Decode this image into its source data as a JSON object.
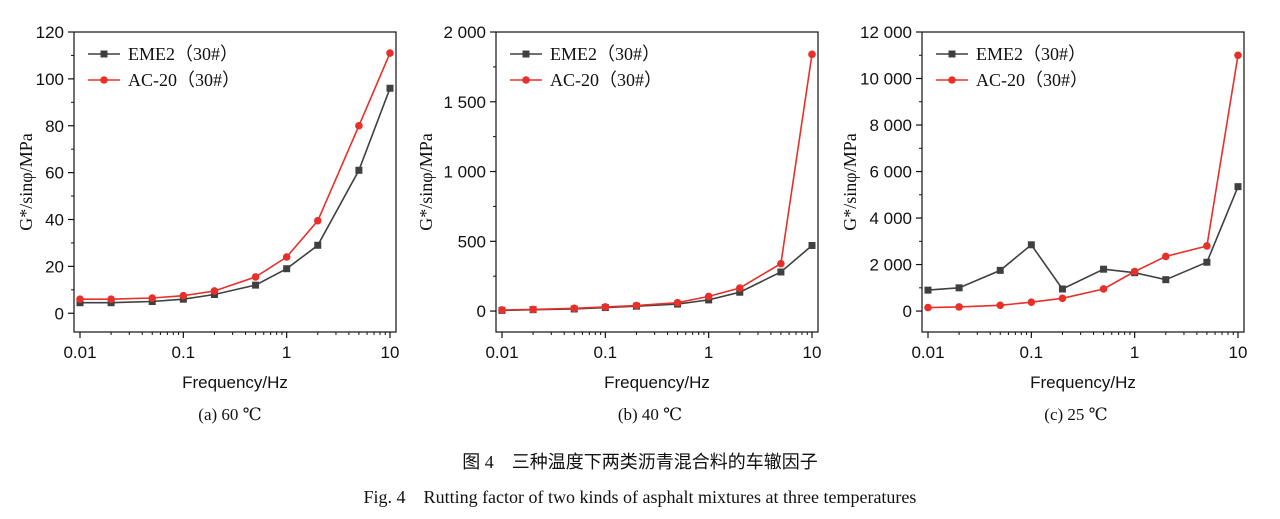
{
  "figure": {
    "caption_cn": "图 4    三种温度下两类沥青混合料的车辙因子",
    "caption_en": "Fig. 4    Rutting factor of two kinds of asphalt mixtures at three temperatures"
  },
  "colors": {
    "EME2": "#404040",
    "AC20": "#e8302a"
  },
  "chart_data": [
    {
      "type": "line",
      "subtitle": "(a) 60 ℃",
      "xlabel": "Frequency/Hz",
      "ylabel": "G*/sinφ/MPa",
      "xscale": "log",
      "xlim": [
        0.01,
        10
      ],
      "xticks": [
        0.01,
        0.1,
        1,
        10
      ],
      "xtick_labels": [
        "0.01",
        "0.1",
        "1",
        "10"
      ],
      "ylim": [
        -8,
        120
      ],
      "yticks": [
        0,
        20,
        40,
        60,
        80,
        100,
        120
      ],
      "ytick_labels": [
        "0",
        "20",
        "40",
        "60",
        "80",
        "100",
        "120"
      ],
      "legend_position": "top-left",
      "x": [
        0.01,
        0.02,
        0.05,
        0.1,
        0.2,
        0.5,
        1,
        2,
        5,
        10
      ],
      "series": [
        {
          "name": "EME2（30#）",
          "marker": "square",
          "values": [
            4.5,
            4.5,
            5,
            6,
            8,
            12,
            19,
            29,
            61,
            96
          ]
        },
        {
          "name": "AC-20（30#）",
          "marker": "circle",
          "values": [
            6,
            6,
            6.5,
            7.5,
            9.5,
            15.5,
            24,
            39.5,
            80,
            111
          ]
        }
      ]
    },
    {
      "type": "line",
      "subtitle": "(b) 40 ℃",
      "xlabel": "Frequency/Hz",
      "ylabel": "G*/sinφ/MPa",
      "xscale": "log",
      "xlim": [
        0.01,
        10
      ],
      "xticks": [
        0.01,
        0.1,
        1,
        10
      ],
      "xtick_labels": [
        "0.01",
        "0.1",
        "1",
        "10"
      ],
      "ylim": [
        -150,
        2000
      ],
      "yticks": [
        0,
        500,
        1000,
        1500,
        2000
      ],
      "ytick_labels": [
        "0",
        "500",
        "1 000",
        "1 500",
        "2 000"
      ],
      "legend_position": "top-left",
      "x": [
        0.01,
        0.02,
        0.05,
        0.1,
        0.2,
        0.5,
        1,
        2,
        5,
        10
      ],
      "series": [
        {
          "name": "EME2（30#）",
          "marker": "square",
          "values": [
            5,
            10,
            15,
            25,
            35,
            50,
            80,
            135,
            280,
            470
          ]
        },
        {
          "name": "AC-20（30#）",
          "marker": "circle",
          "values": [
            8,
            12,
            20,
            30,
            40,
            60,
            105,
            165,
            340,
            1840
          ]
        }
      ]
    },
    {
      "type": "line",
      "subtitle": "(c) 25 ℃",
      "xlabel": "Frequency/Hz",
      "ylabel": "G*/sinφ/MPa",
      "xscale": "log",
      "xlim": [
        0.01,
        10
      ],
      "xticks": [
        0.01,
        0.1,
        1,
        10
      ],
      "xtick_labels": [
        "0.01",
        "0.1",
        "1",
        "10"
      ],
      "ylim": [
        -900,
        12000
      ],
      "yticks": [
        0,
        2000,
        4000,
        6000,
        8000,
        10000,
        12000
      ],
      "ytick_labels": [
        "0",
        "2 000",
        "4 000",
        "6 000",
        "8 000",
        "10 000",
        "12 000"
      ],
      "legend_position": "top-left",
      "x": [
        0.01,
        0.02,
        0.05,
        0.1,
        0.2,
        0.5,
        1,
        2,
        5,
        10
      ],
      "series": [
        {
          "name": "EME2（30#）",
          "marker": "square",
          "values": [
            900,
            1000,
            1750,
            2850,
            950,
            1800,
            1650,
            1350,
            2100,
            5350
          ]
        },
        {
          "name": "AC-20（30#）",
          "marker": "circle",
          "values": [
            150,
            180,
            250,
            380,
            550,
            950,
            1700,
            2350,
            2800,
            11000
          ]
        }
      ]
    }
  ]
}
